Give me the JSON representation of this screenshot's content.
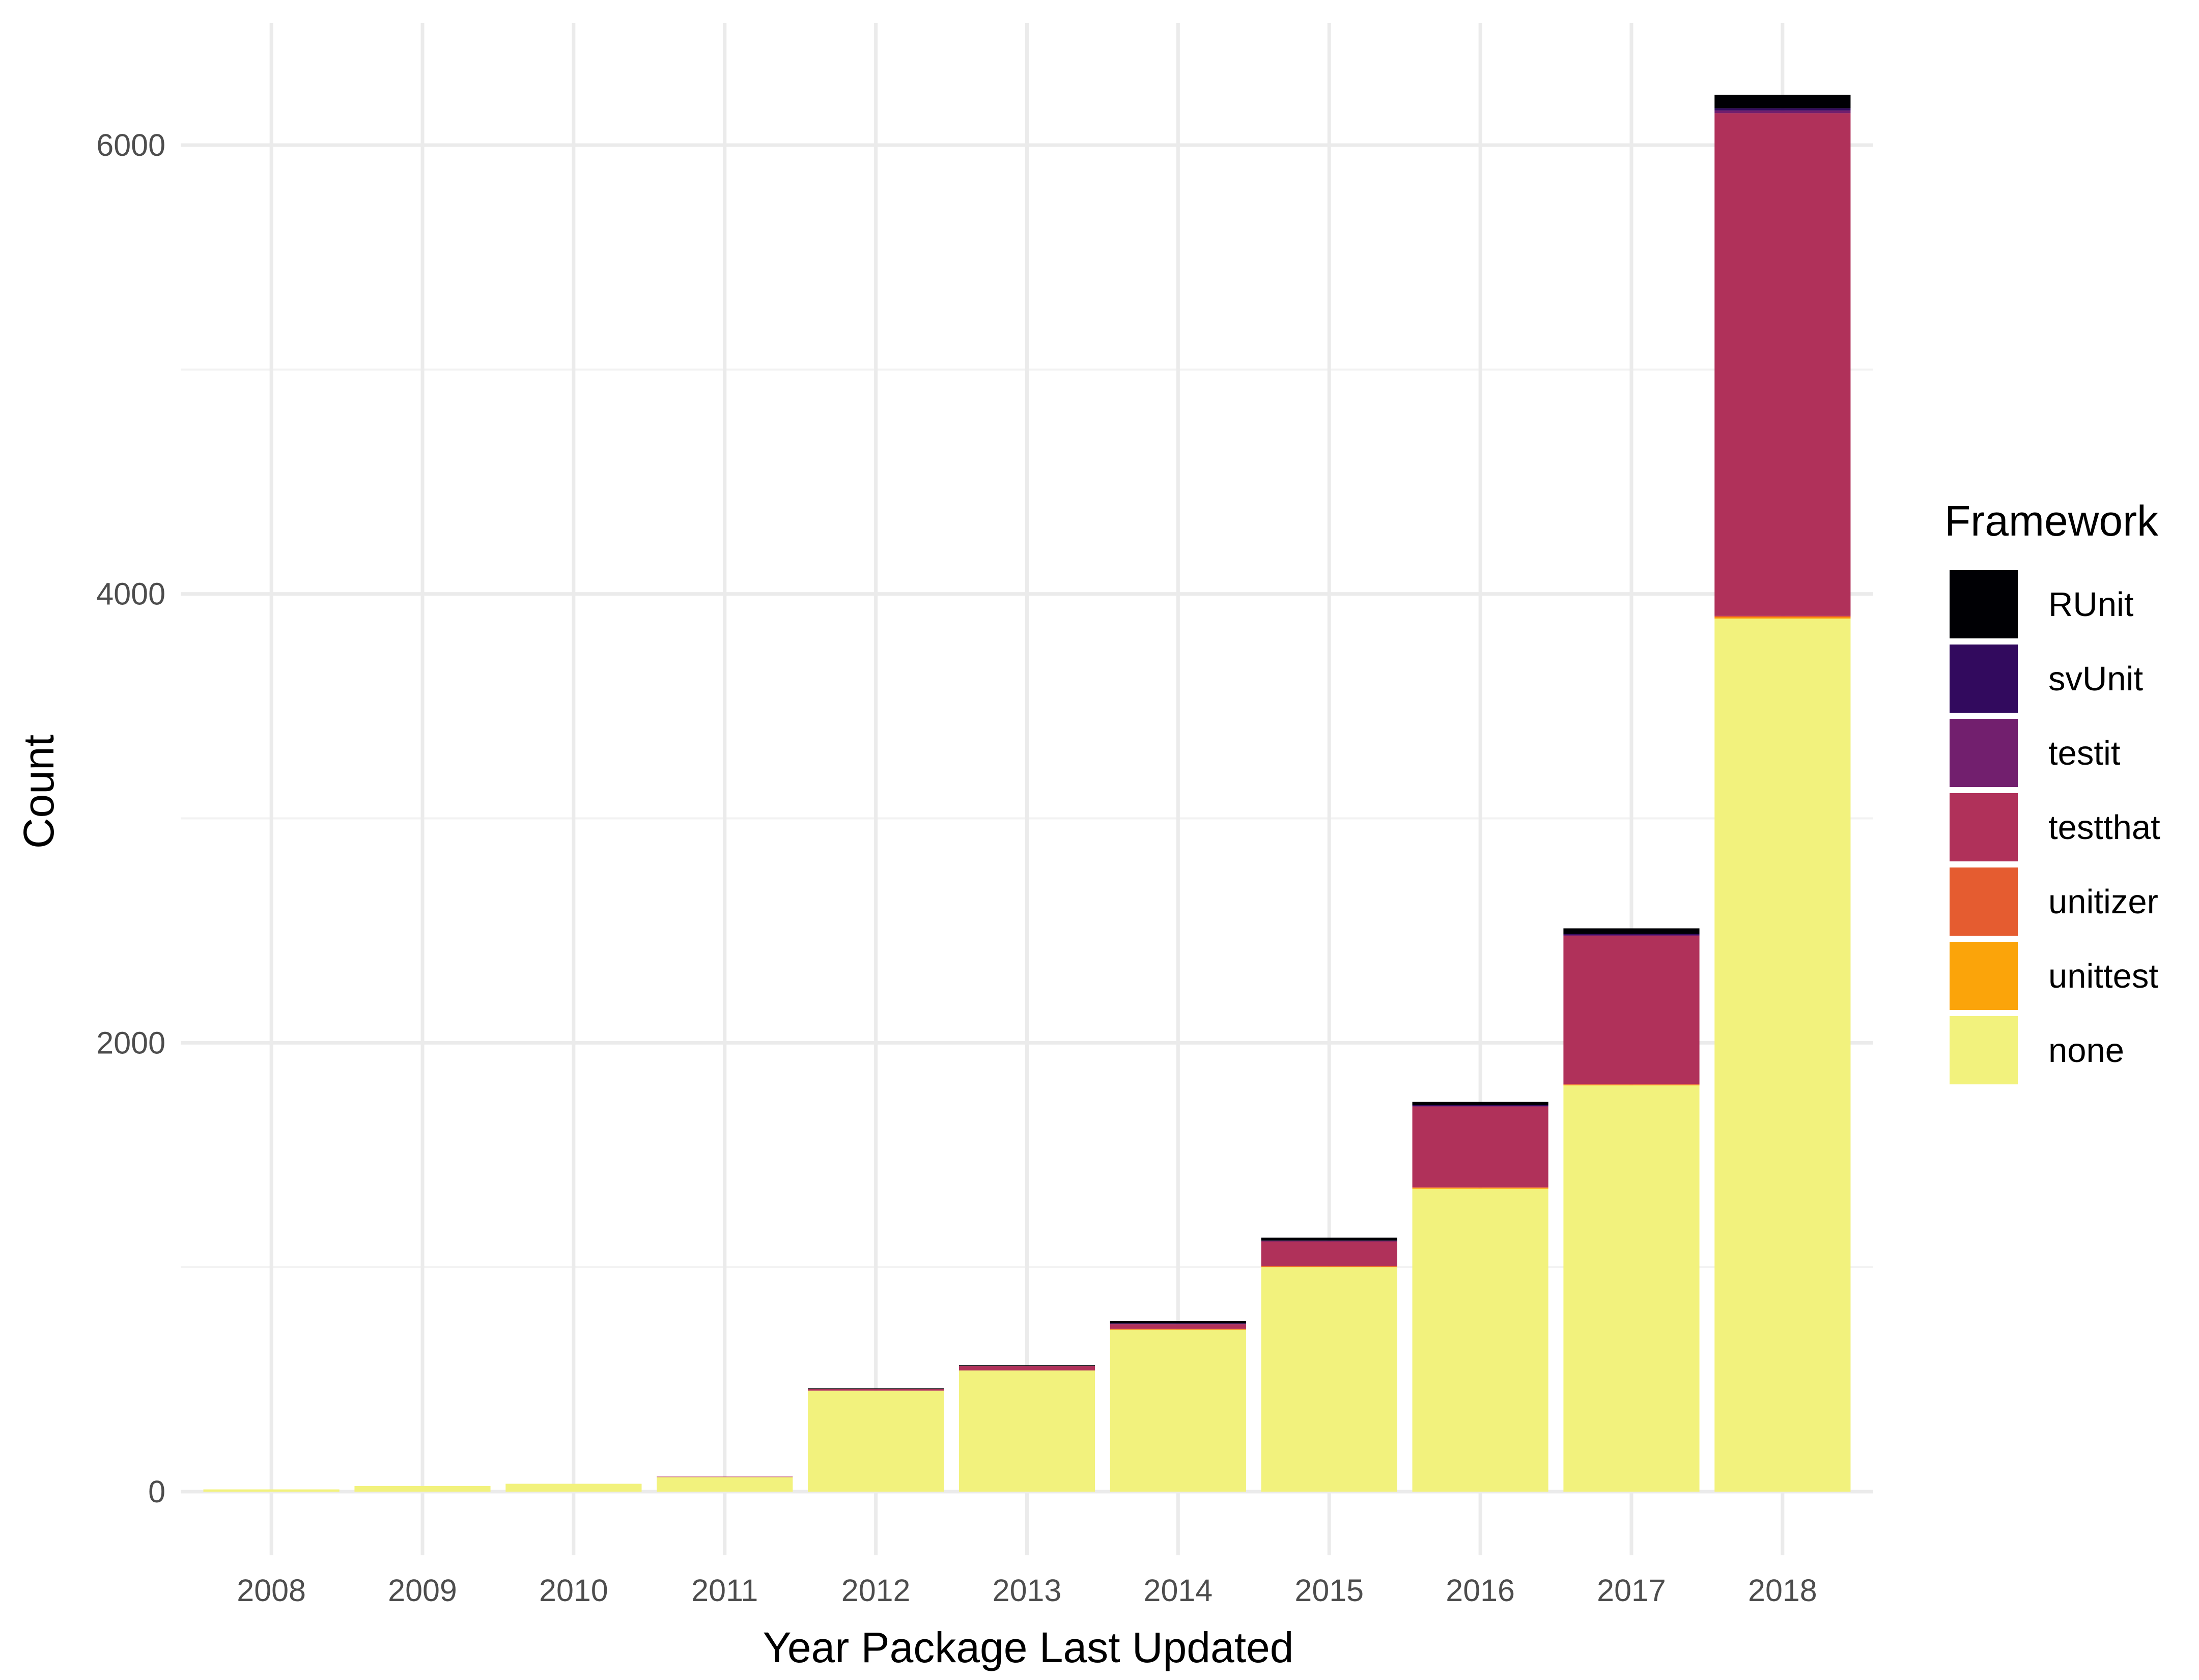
{
  "chart_data": {
    "type": "bar",
    "stacked": true,
    "title": "",
    "xlabel": "Year Package Last Updated",
    "ylabel": "Count",
    "ylim": [
      -280,
      6480
    ],
    "yticks": [
      0,
      2000,
      4000,
      6000
    ],
    "grid": true,
    "legend_title": "Framework",
    "legend_position": "right",
    "categories": [
      "2008",
      "2009",
      "2010",
      "2011",
      "2012",
      "2013",
      "2014",
      "2015",
      "2016",
      "2017",
      "2018"
    ],
    "series": [
      {
        "name": "none",
        "color": "#f2f27d",
        "values": [
          10,
          25,
          35,
          65,
          450,
          540,
          720,
          1000,
          1350,
          1810,
          3890
        ]
      },
      {
        "name": "unittest",
        "color": "#fba40a",
        "values": [
          0,
          0,
          0,
          0,
          0,
          0,
          3,
          3,
          3,
          3,
          6
        ]
      },
      {
        "name": "unitizer",
        "color": "#e55c30",
        "values": [
          0,
          0,
          0,
          0,
          0,
          0,
          3,
          2,
          3,
          4,
          6
        ]
      },
      {
        "name": "testthat",
        "color": "#b0315a",
        "values": [
          0,
          0,
          0,
          2,
          8,
          20,
          20,
          110,
          360,
          660,
          2240
        ]
      },
      {
        "name": "testit",
        "color": "#721f6e",
        "values": [
          0,
          0,
          0,
          0,
          0,
          0,
          2,
          2,
          3,
          4,
          12
        ]
      },
      {
        "name": "svUnit",
        "color": "#320a5e",
        "values": [
          0,
          0,
          0,
          0,
          0,
          0,
          2,
          2,
          3,
          4,
          10
        ]
      },
      {
        "name": "RUnit",
        "color": "#000004",
        "values": [
          0,
          0,
          0,
          0,
          2,
          3,
          10,
          13,
          15,
          25,
          60
        ]
      }
    ],
    "legend_order": [
      "RUnit",
      "svUnit",
      "testit",
      "testthat",
      "unitizer",
      "unittest",
      "none"
    ]
  }
}
